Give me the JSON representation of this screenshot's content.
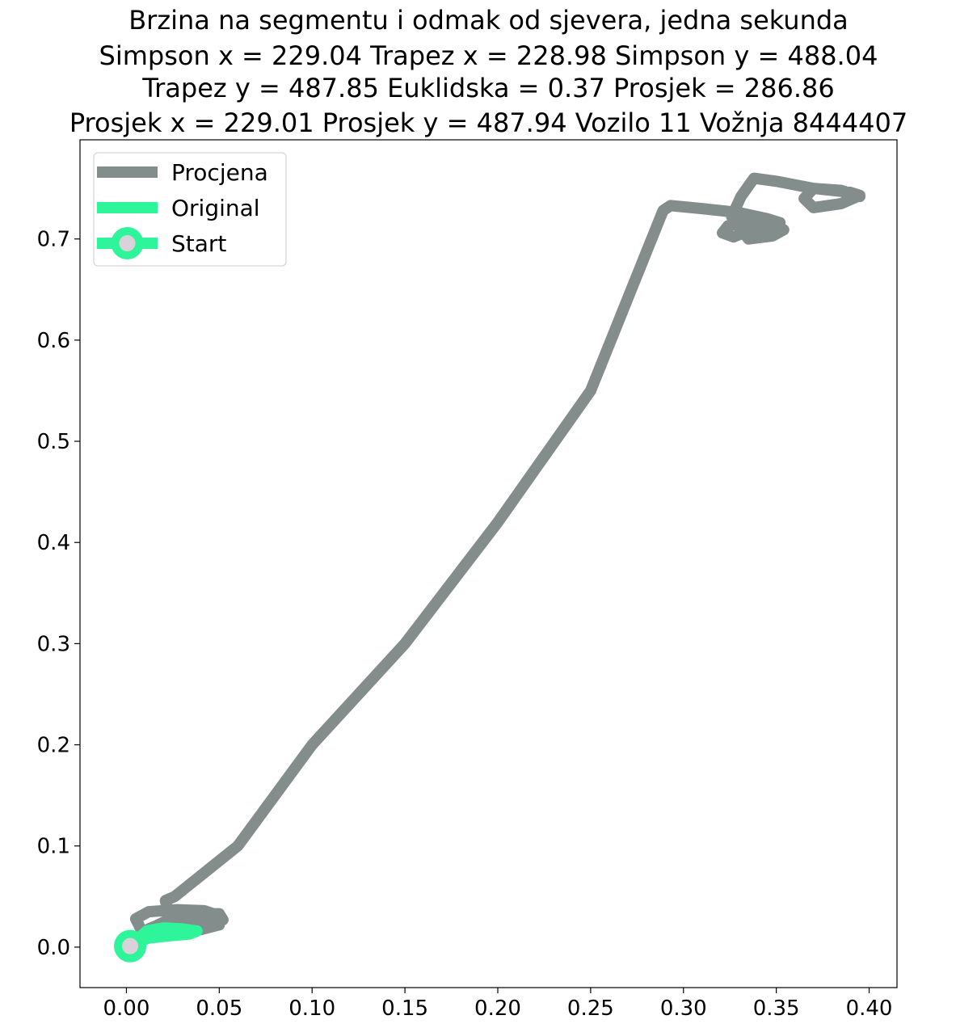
{
  "chart_data": {
    "type": "line",
    "title_lines": [
      "Brzina na segmentu i odmak od sjevera, jedna sekunda",
      "Simpson x = 229.04 Trapez x = 228.98 Simpson y = 488.04",
      "Trapez y = 487.85 Euklidska = 0.37 Prosjek = 286.86",
      "Prosjek x = 229.01 Prosjek y = 487.94 Vozilo 11 Vožnja 8444407"
    ],
    "xlabel": "",
    "ylabel": "",
    "xlim": [
      -0.025,
      0.415
    ],
    "ylim": [
      -0.04,
      0.798
    ],
    "xticks": [
      0.0,
      0.05,
      0.1,
      0.15,
      0.2,
      0.25,
      0.3,
      0.35,
      0.4
    ],
    "xtick_labels": [
      "0.00",
      "0.05",
      "0.10",
      "0.15",
      "0.20",
      "0.25",
      "0.30",
      "0.35",
      "0.40"
    ],
    "yticks": [
      0.0,
      0.1,
      0.2,
      0.3,
      0.4,
      0.5,
      0.6,
      0.7
    ],
    "ytick_labels": [
      "0.0",
      "0.1",
      "0.2",
      "0.3",
      "0.4",
      "0.5",
      "0.6",
      "0.7"
    ],
    "grid": false,
    "legend_position": "top-left",
    "series": [
      {
        "name": "Procjena",
        "color": "#838d8b",
        "x": [
          0.0,
          0.004,
          0.01,
          0.017,
          0.026,
          0.038,
          0.05,
          0.052,
          0.043,
          0.03,
          0.018,
          0.012,
          0.02,
          0.034,
          0.047,
          0.05,
          0.035,
          0.018,
          0.008,
          0.005,
          0.012,
          0.027,
          0.042,
          0.05,
          0.045,
          0.032,
          0.022,
          0.021,
          0.026,
          0.06,
          0.1,
          0.15,
          0.2,
          0.25,
          0.289,
          0.293,
          0.31,
          0.33,
          0.345,
          0.352,
          0.35,
          0.34,
          0.327,
          0.321,
          0.324,
          0.336,
          0.348,
          0.354,
          0.348,
          0.335,
          0.326,
          0.331,
          0.336,
          0.338,
          0.35,
          0.37,
          0.39,
          0.395,
          0.385,
          0.37,
          0.365,
          0.37,
          0.385,
          0.395
        ],
        "y": [
          0.0,
          0.005,
          0.012,
          0.022,
          0.03,
          0.033,
          0.033,
          0.027,
          0.02,
          0.016,
          0.014,
          0.018,
          0.024,
          0.028,
          0.032,
          0.022,
          0.015,
          0.011,
          0.017,
          0.028,
          0.035,
          0.037,
          0.036,
          0.031,
          0.029,
          0.032,
          0.038,
          0.046,
          0.05,
          0.1,
          0.2,
          0.3,
          0.42,
          0.55,
          0.728,
          0.733,
          0.73,
          0.726,
          0.72,
          0.716,
          0.711,
          0.712,
          0.702,
          0.706,
          0.713,
          0.717,
          0.715,
          0.709,
          0.703,
          0.7,
          0.722,
          0.742,
          0.755,
          0.76,
          0.757,
          0.75,
          0.746,
          0.743,
          0.735,
          0.731,
          0.74,
          0.75,
          0.748,
          0.742
        ]
      },
      {
        "name": "Original",
        "color": "#2ef59a",
        "x": [
          0.002,
          0.006,
          0.011,
          0.02,
          0.03,
          0.038,
          0.034,
          0.022,
          0.012,
          0.006,
          0.003
        ],
        "y": [
          0.001,
          0.008,
          0.016,
          0.019,
          0.018,
          0.016,
          0.013,
          0.011,
          0.009,
          0.005,
          0.001
        ]
      }
    ],
    "start_marker": {
      "name": "Start",
      "x": 0.002,
      "y": 0.001,
      "edge_color": "#2ef59a",
      "face_color": "#d9d3d9"
    }
  }
}
